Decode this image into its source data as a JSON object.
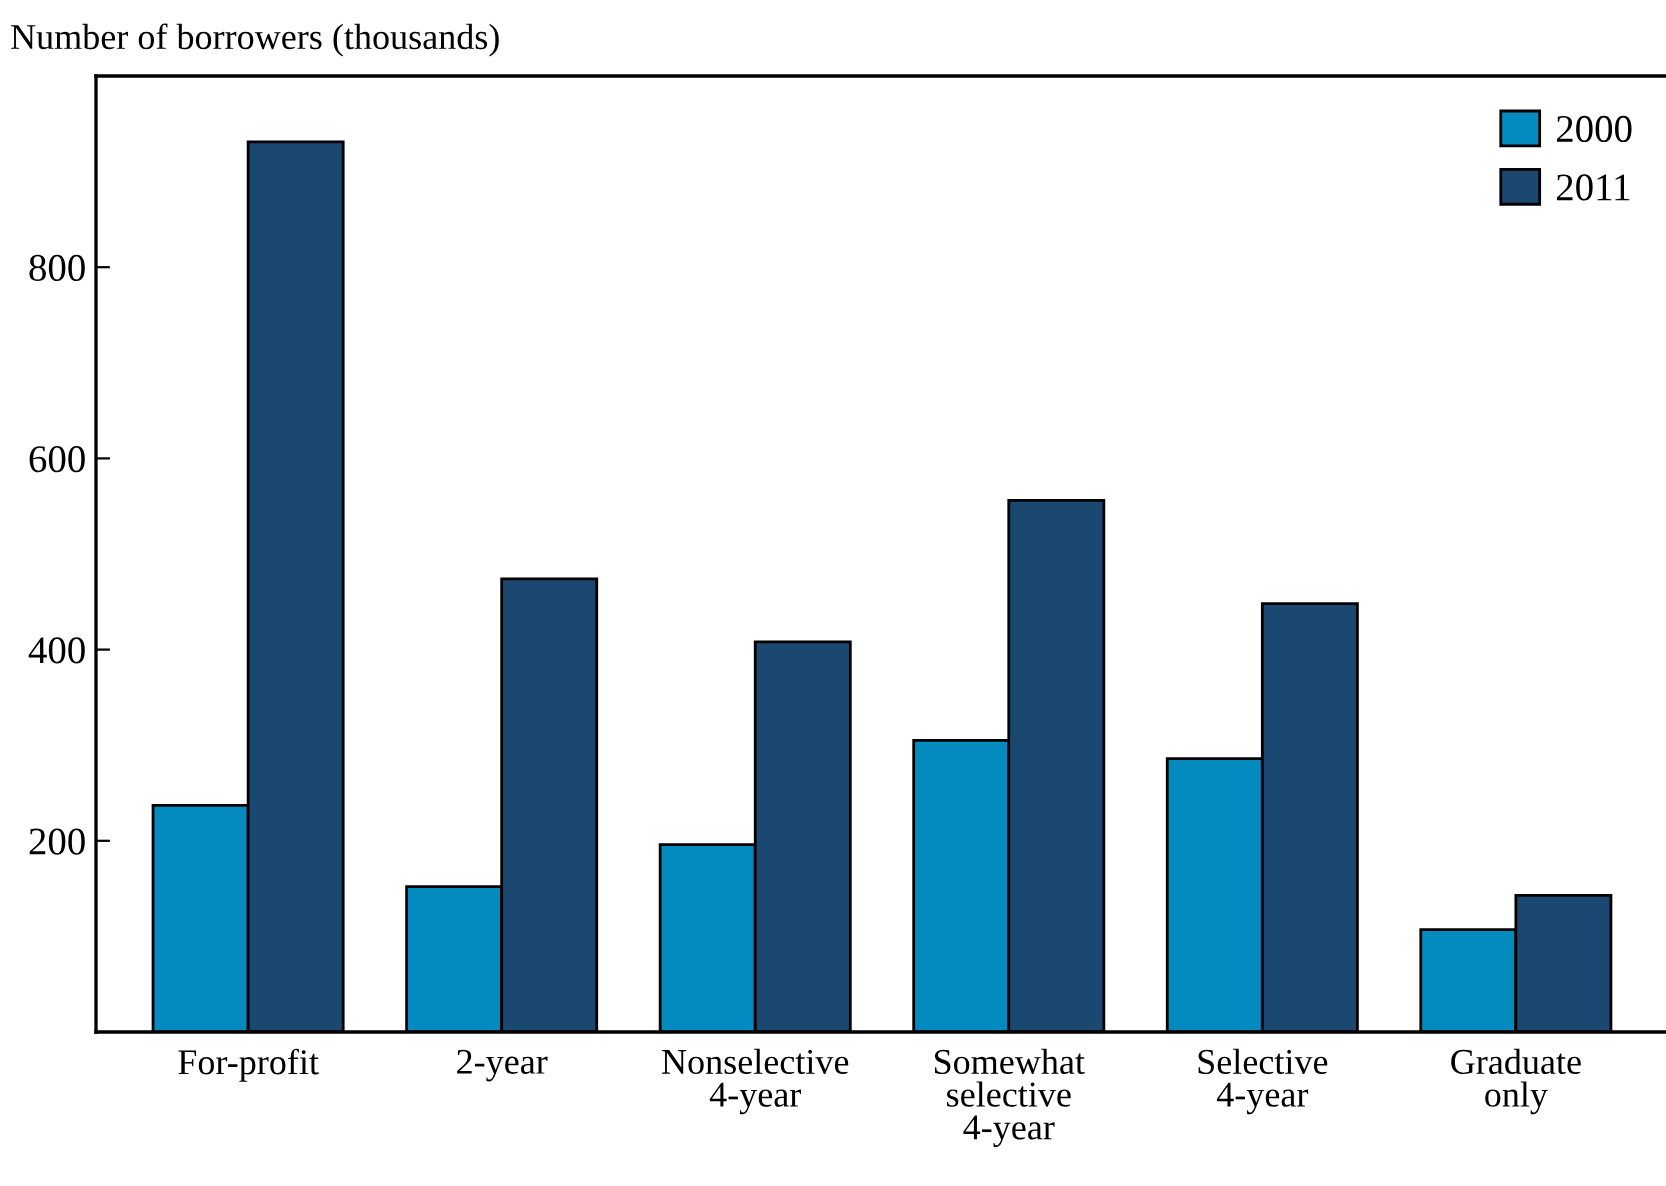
{
  "chart_data": {
    "type": "bar",
    "ylabel": "Number of borrowers (thousands)",
    "categories": [
      "For-profit",
      "2-year",
      "Nonselective\n4-year",
      "Somewhat\nselective\n4-year",
      "Selective\n4-year",
      "Graduate\nonly"
    ],
    "series": [
      {
        "name": "2000",
        "color": "#038bbf",
        "values": [
          237,
          152,
          196,
          305,
          286,
          107
        ]
      },
      {
        "name": "2011",
        "color": "#1b4870",
        "values": [
          931,
          474,
          408,
          556,
          448,
          143
        ]
      }
    ],
    "ylim": [
      0,
      1000
    ],
    "yticks": [
      200,
      400,
      600,
      800
    ],
    "grid": false,
    "legend": "top right"
  }
}
